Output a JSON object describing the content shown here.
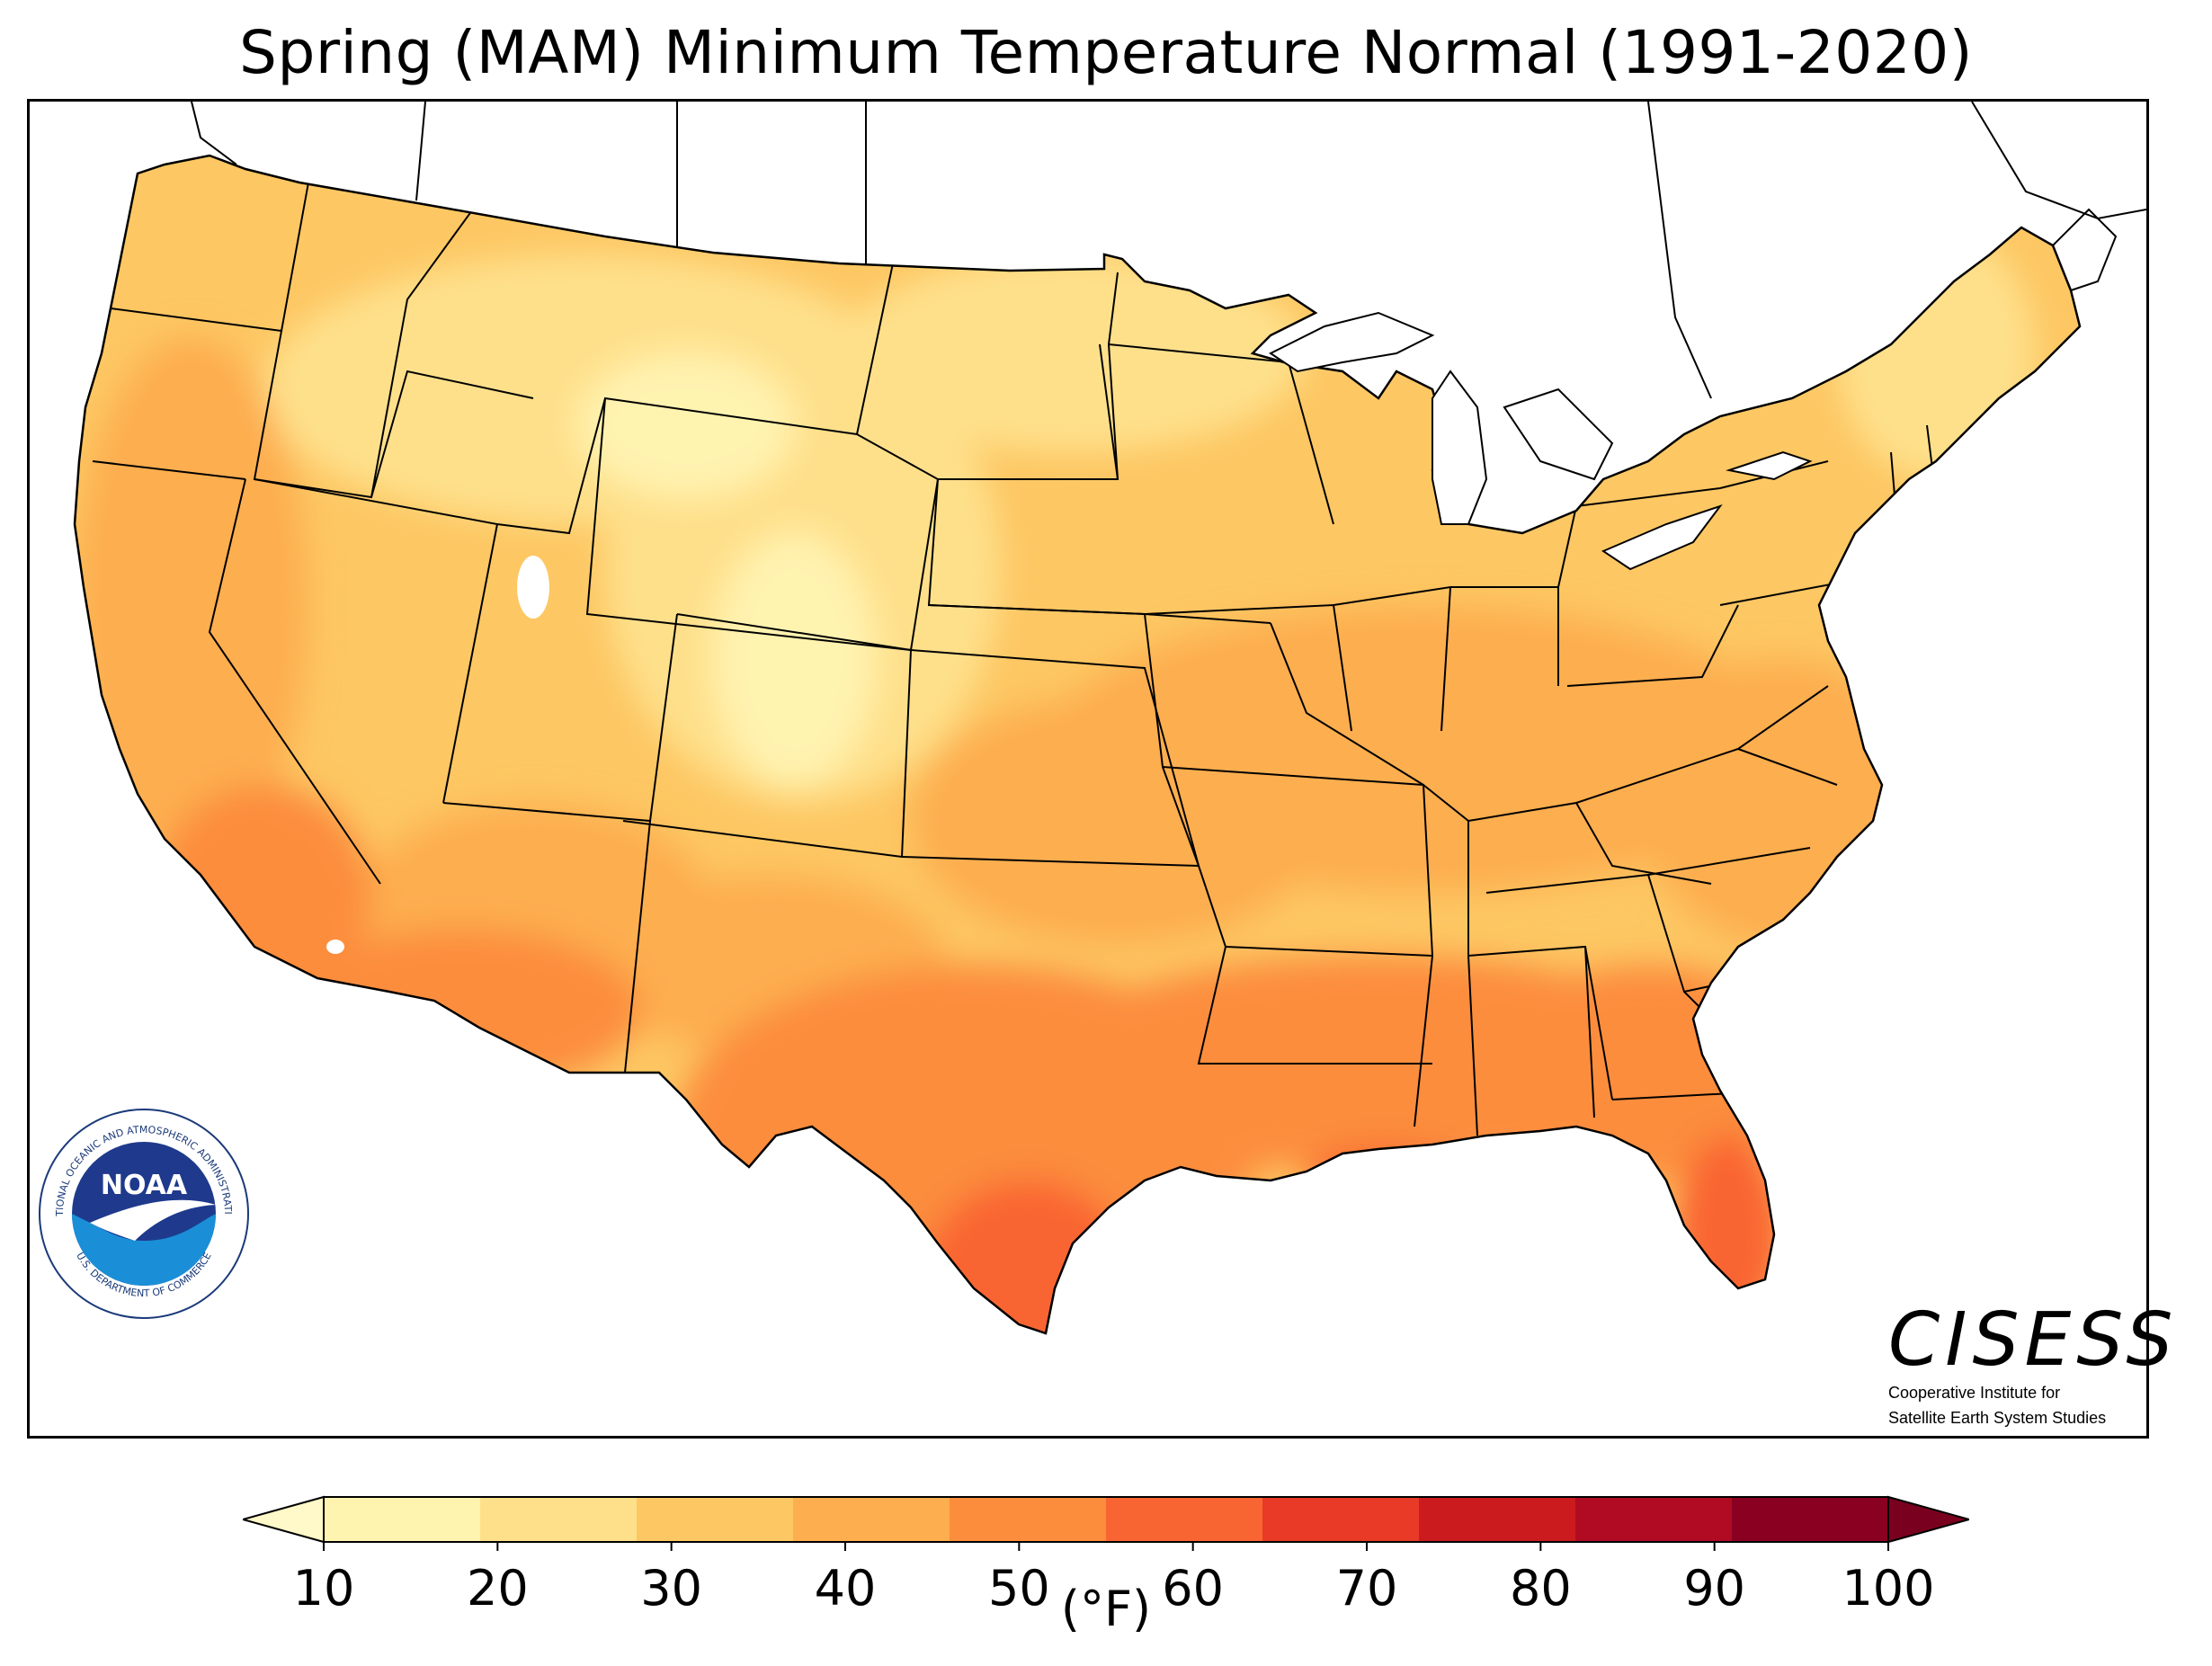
{
  "title": "Spring (MAM) Minimum Temperature Normal (1991-2020)",
  "colorbar": {
    "units": "(°F)",
    "ticks": [
      "10",
      "20",
      "30",
      "40",
      "50",
      "60",
      "70",
      "80",
      "90",
      "100"
    ],
    "colors": [
      "#fff3b0",
      "#fee08b",
      "#fdc763",
      "#fdae4f",
      "#fc8d3c",
      "#f96532",
      "#e83a26",
      "#cc1b1f",
      "#b00b22",
      "#8a0021"
    ],
    "under_color": "#fff8c8",
    "over_color": "#7a0020"
  },
  "logos": {
    "noaa": {
      "center": "NOAA",
      "ring": "NATIONAL OCEANIC AND ATMOSPHERIC ADMINISTRATION",
      "ring_bottom": "U.S. DEPARTMENT OF COMMERCE"
    },
    "cisess": {
      "name": "CISESS",
      "line1": "Cooperative Institute for",
      "line2": "Satellite Earth System Studies"
    }
  }
}
